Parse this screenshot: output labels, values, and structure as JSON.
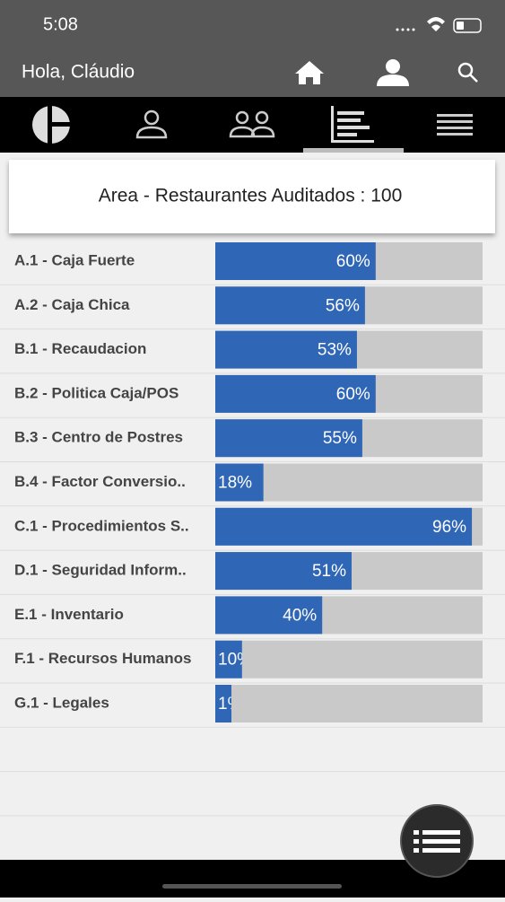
{
  "status_bar": {
    "time": "5:08"
  },
  "header": {
    "greeting": "Hola, Cláudio"
  },
  "chart_data": {
    "type": "bar",
    "orientation": "horizontal",
    "title": "Area - Restaurantes Auditados : 100",
    "categories": [
      "A.1 - Caja Fuerte",
      "A.2 - Caja Chica",
      "B.1 - Recaudacion",
      "B.2 - Politica Caja/POS",
      "B.3 - Centro de Postres",
      "B.4 - Factor Conversio..",
      "C.1 - Procedimientos S..",
      "D.1 - Seguridad Inform..",
      "E.1 - Inventario",
      "F.1 - Recursos Humanos",
      "G.1 - Legales"
    ],
    "values": [
      60,
      56,
      53,
      60,
      55,
      18,
      96,
      51,
      40,
      10,
      1
    ],
    "value_labels": [
      "60%",
      "56%",
      "53%",
      "60%",
      "55%",
      "18%",
      "96%",
      "51%",
      "40%",
      "10%",
      "1%"
    ],
    "xlim": [
      0,
      100
    ],
    "color": "#2f66b6",
    "track_color": "#c9c9c9"
  }
}
